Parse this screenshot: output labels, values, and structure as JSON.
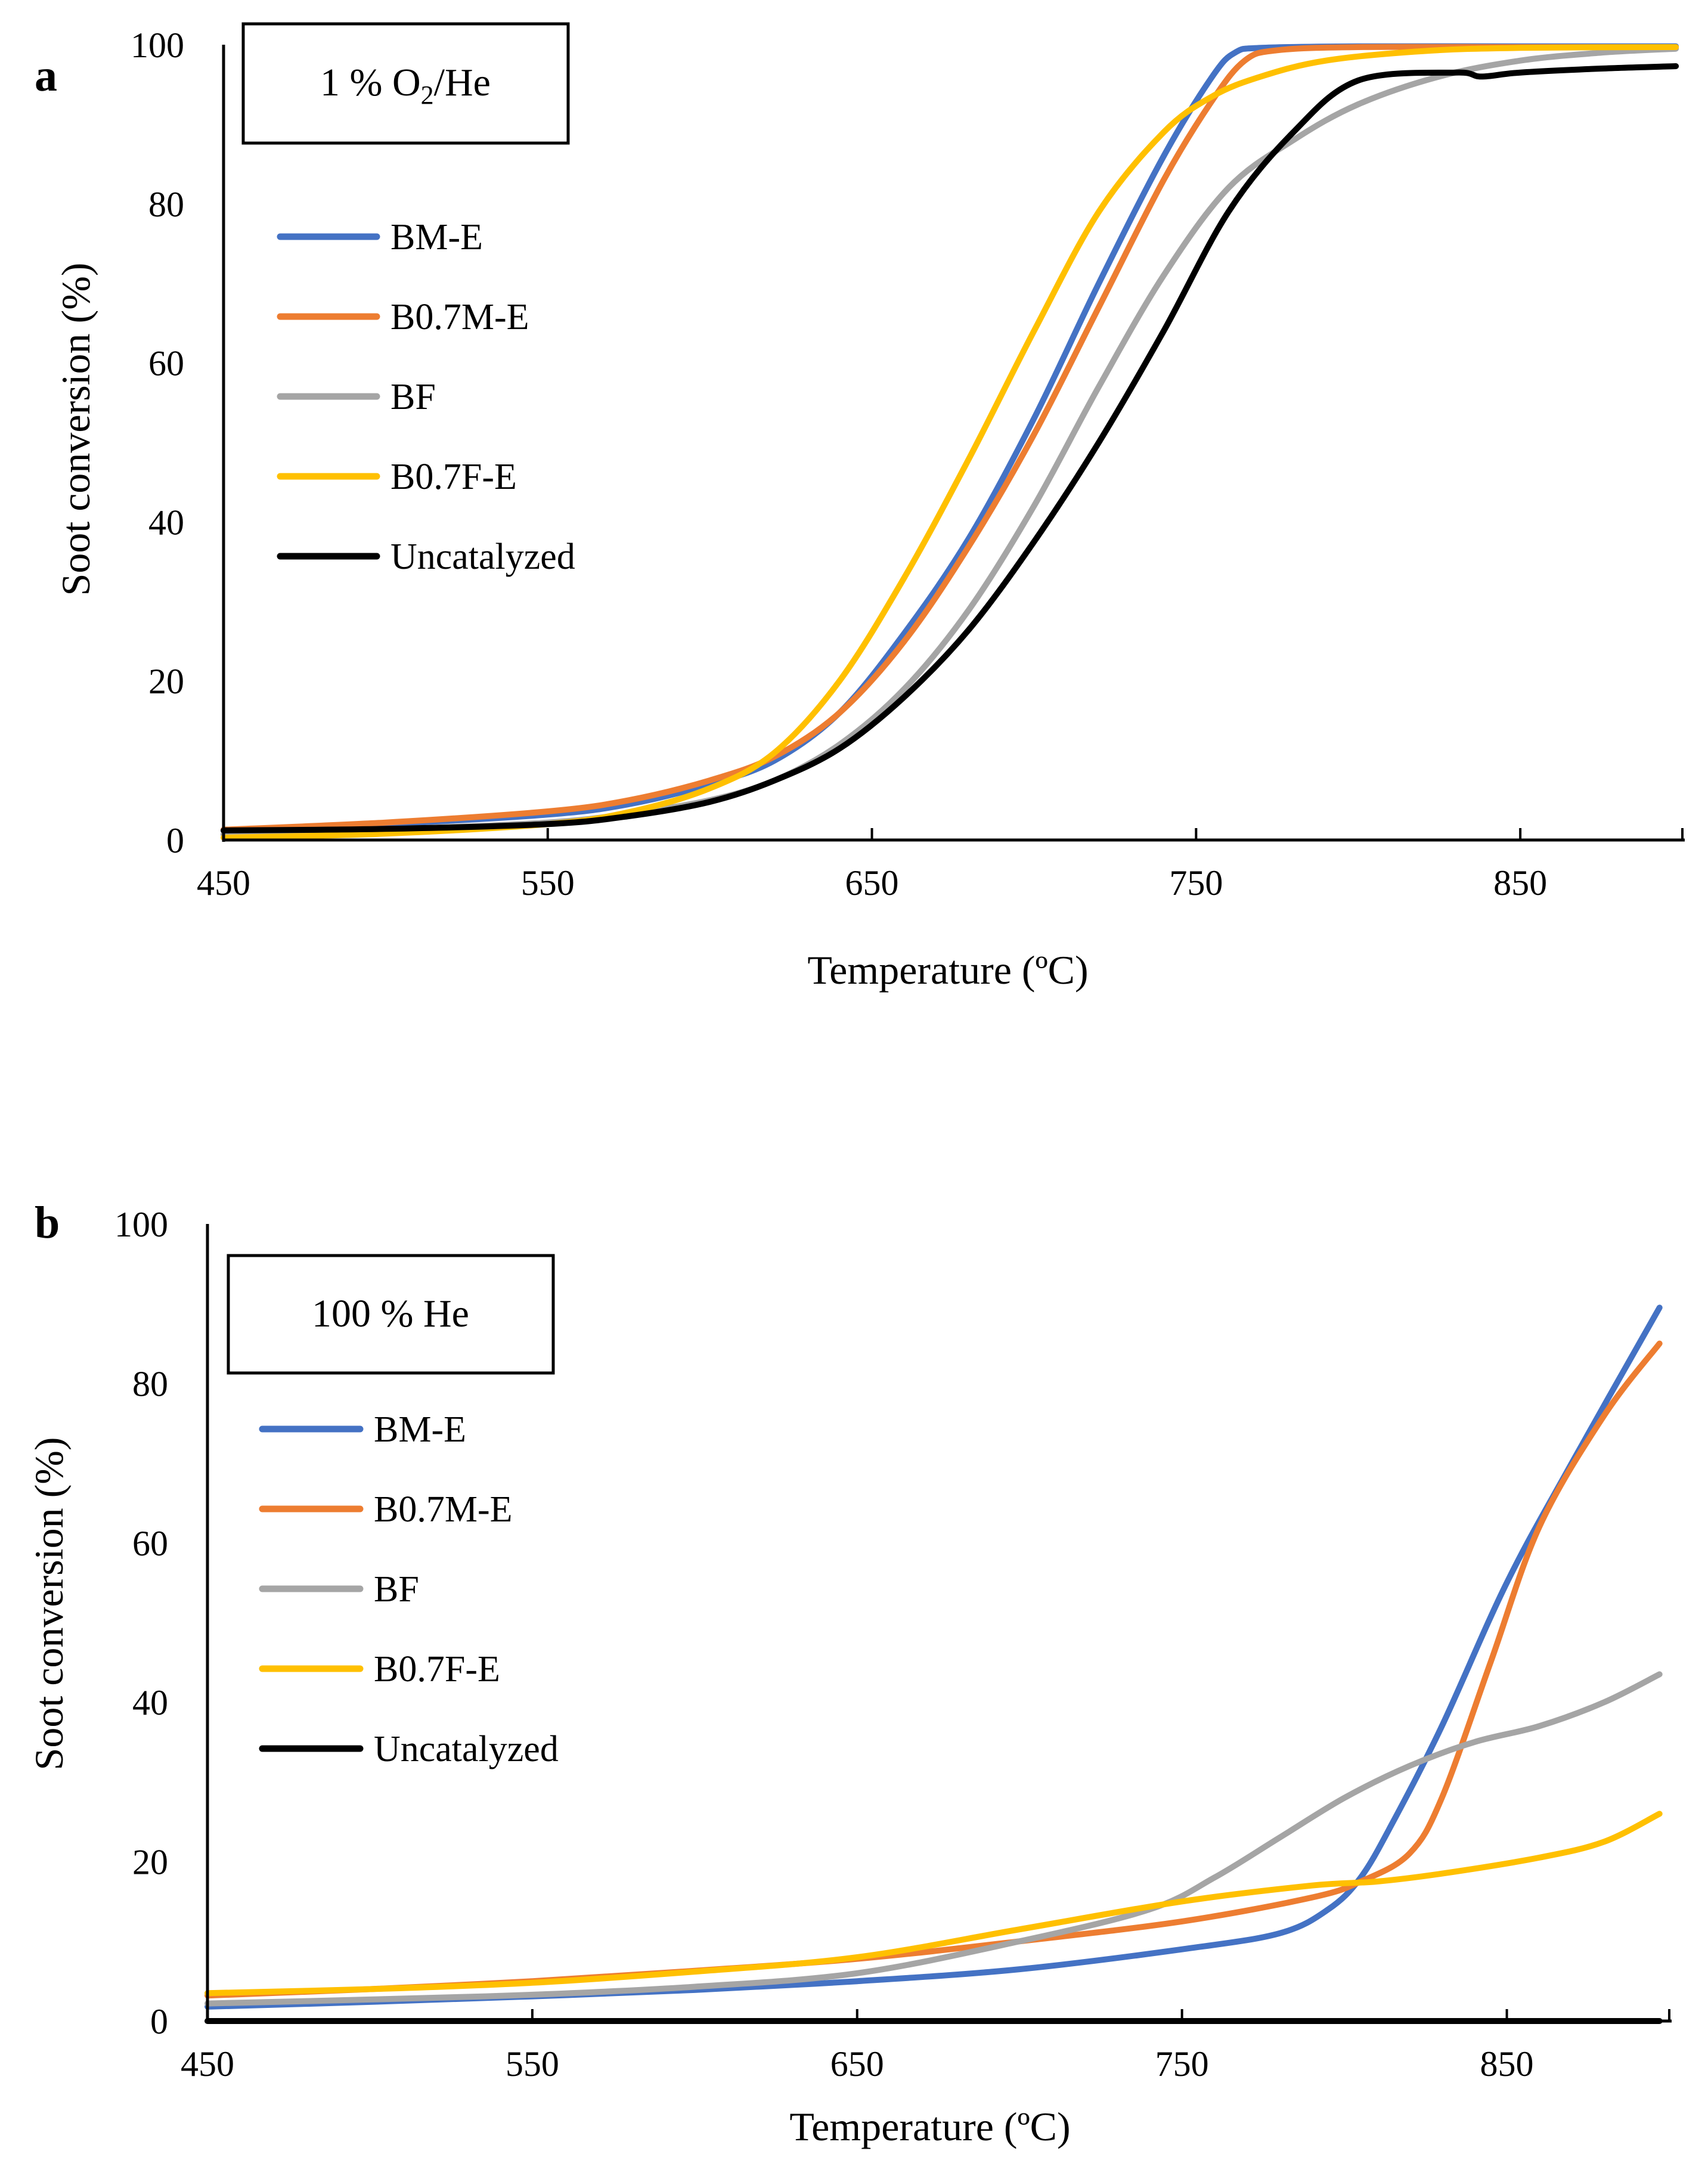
{
  "chart_data": [
    {
      "type": "line",
      "panel_label": "a",
      "condition": {
        "prefix": "1 % O",
        "subscript": "2",
        "suffix": "/He"
      },
      "xlabel": "Temperature (ºC)",
      "ylabel": "Soot conversion (%)",
      "xlim": [
        450,
        900
      ],
      "ylim": [
        0,
        100
      ],
      "xticks": [
        450,
        550,
        650,
        750,
        850
      ],
      "yticks": [
        0,
        20,
        40,
        60,
        80,
        100
      ],
      "grid": false,
      "legend_position": "upper-left",
      "series": [
        {
          "name": "BM-E",
          "color": "#4472C4",
          "x": [
            450,
            500,
            550,
            575,
            600,
            620,
            640,
            660,
            680,
            700,
            720,
            740,
            755,
            762,
            770,
            800,
            850,
            898
          ],
          "y": [
            1.2,
            2.0,
            3.2,
            4.5,
            7,
            10,
            16,
            26,
            38,
            53,
            70,
            86,
            96,
            99,
            99.6,
            99.8,
            99.8,
            99.8
          ]
        },
        {
          "name": "B0.7M-E",
          "color": "#ED7D31",
          "x": [
            450,
            500,
            550,
            575,
            600,
            620,
            640,
            660,
            680,
            700,
            720,
            740,
            755,
            765,
            775,
            800,
            850,
            898
          ],
          "y": [
            1.3,
            2.2,
            3.6,
            5,
            7.5,
            10.5,
            16,
            25,
            37,
            51,
            67,
            83,
            93,
            98,
            99.3,
            99.7,
            99.7,
            99.7
          ]
        },
        {
          "name": "BF",
          "color": "#A5A5A5",
          "x": [
            450,
            500,
            550,
            575,
            600,
            620,
            640,
            660,
            680,
            700,
            720,
            740,
            760,
            780,
            800,
            825,
            850,
            875,
            898
          ],
          "y": [
            0.7,
            1.3,
            2.2,
            3.3,
            5,
            7.5,
            12,
            19,
            29,
            42,
            57,
            71,
            82,
            88,
            92.5,
            96,
            98,
            99,
            99.5
          ]
        },
        {
          "name": "B0.7F-E",
          "color": "#FFC000",
          "x": [
            450,
            500,
            550,
            575,
            600,
            620,
            640,
            660,
            680,
            700,
            720,
            740,
            755,
            770,
            790,
            820,
            850,
            898
          ],
          "y": [
            0.3,
            0.8,
            2,
            3.5,
            6.5,
            11,
            20,
            33,
            48,
            64,
            79,
            89,
            93.5,
            96,
            98,
            99.2,
            99.6,
            99.7
          ]
        },
        {
          "name": "Uncatalyzed",
          "color": "#000000",
          "x": [
            450,
            500,
            550,
            575,
            600,
            620,
            640,
            660,
            680,
            700,
            720,
            740,
            760,
            780,
            800,
            830,
            838,
            850,
            875,
            898
          ],
          "y": [
            1.2,
            1.4,
            2,
            3,
            4.8,
            7.5,
            11.5,
            18,
            26.5,
            37.5,
            50,
            64,
            79,
            89,
            95.5,
            96.5,
            96,
            96.5,
            97,
            97.3
          ]
        }
      ]
    },
    {
      "type": "line",
      "panel_label": "b",
      "condition": {
        "prefix": "100 % He",
        "subscript": "",
        "suffix": ""
      },
      "xlabel": "Temperature (ºC)",
      "ylabel": "Soot conversion (%)",
      "xlim": [
        450,
        900
      ],
      "ylim": [
        0,
        100
      ],
      "xticks": [
        450,
        550,
        650,
        750,
        850
      ],
      "yticks": [
        0,
        20,
        40,
        60,
        80,
        100
      ],
      "grid": false,
      "legend_position": "upper-left",
      "series": [
        {
          "name": "BM-E",
          "color": "#4472C4",
          "x": [
            450,
            500,
            550,
            600,
            650,
            700,
            750,
            780,
            795,
            805,
            815,
            830,
            850,
            870,
            897
          ],
          "y": [
            1.8,
            2.4,
            3.1,
            3.9,
            5,
            6.5,
            9,
            11,
            14,
            18,
            25,
            37,
            55,
            70,
            89.5
          ]
        },
        {
          "name": "B0.7M-E",
          "color": "#ED7D31",
          "x": [
            450,
            500,
            550,
            600,
            650,
            700,
            750,
            790,
            805,
            820,
            830,
            845,
            860,
            880,
            897
          ],
          "y": [
            3.2,
            4,
            5,
            6.3,
            7.8,
            10,
            12.5,
            15.5,
            17.5,
            21,
            28,
            45,
            62,
            76,
            85
          ]
        },
        {
          "name": "BF",
          "color": "#A5A5A5",
          "x": [
            450,
            500,
            550,
            600,
            650,
            700,
            740,
            760,
            780,
            800,
            820,
            840,
            860,
            880,
            897
          ],
          "y": [
            2.2,
            2.7,
            3.3,
            4.3,
            6,
            10,
            14,
            18,
            23,
            28,
            32,
            35,
            37,
            40,
            43.5
          ]
        },
        {
          "name": "B0.7F-E",
          "color": "#FFC000",
          "x": [
            450,
            500,
            550,
            600,
            650,
            700,
            750,
            790,
            810,
            830,
            860,
            880,
            897
          ],
          "y": [
            3.5,
            4,
            4.8,
            6.2,
            8,
            11.5,
            15,
            17,
            17.5,
            18.5,
            20.5,
            22.5,
            26
          ]
        },
        {
          "name": "Uncatalyzed",
          "color": "#000000",
          "x": [
            450,
            897
          ],
          "y": [
            0,
            0
          ]
        }
      ]
    }
  ]
}
